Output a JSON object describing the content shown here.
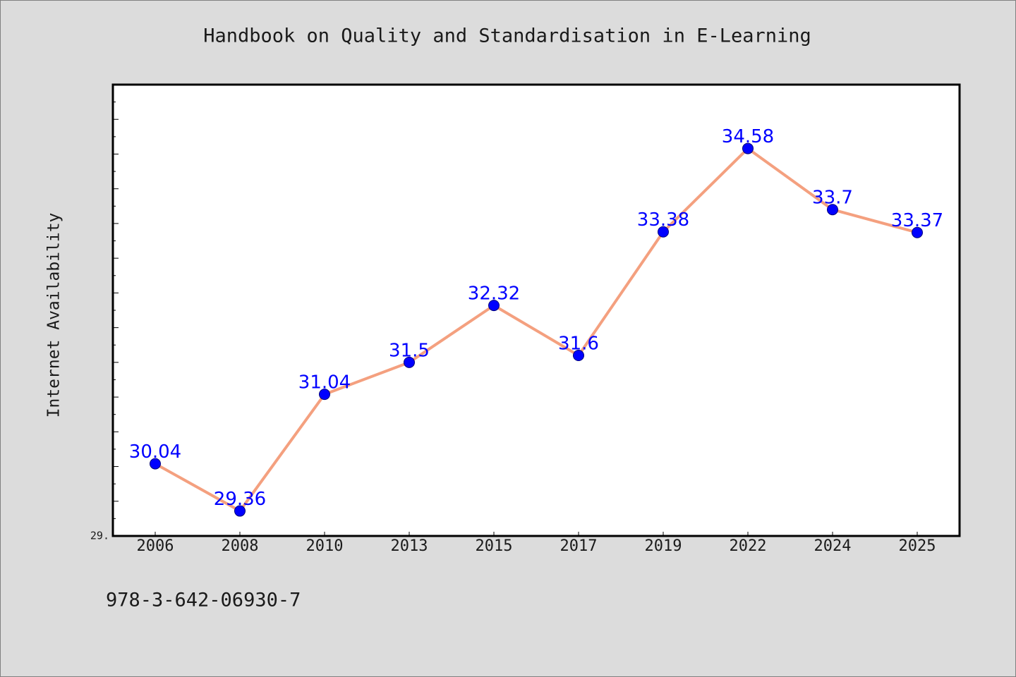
{
  "chart_data": {
    "type": "line",
    "title": "Handbook on Quality and Standardisation in E-Learning",
    "ylabel": "Internet Availability",
    "categories": [
      "2006",
      "2008",
      "2010",
      "2013",
      "2015",
      "2017",
      "2019",
      "2022",
      "2024",
      "2025"
    ],
    "series": [
      {
        "values": [
          30.04,
          29.36,
          31.04,
          31.5,
          32.32,
          31.6,
          33.38,
          34.58,
          33.7,
          33.37
        ],
        "data_labels": [
          "30.04",
          "29.36",
          "31.04",
          "31.5",
          "32.32",
          "31.6",
          "33.38",
          "34.58",
          "33.7",
          "33.37"
        ],
        "line_color": "#F4A07F",
        "marker": "filled-circle",
        "marker_color": "#0000FF",
        "marker_edge_color": "#00007A",
        "label_color": "#0000FF"
      }
    ],
    "ylim": [
      29,
      35.5
    ],
    "y_tick_labels": [
      {
        "value": 29,
        "label": "29."
      }
    ],
    "grid": false
  },
  "footer": {
    "text": "978-3-642-06930-7"
  },
  "colors": {
    "background": "#DCDCDC",
    "figure_border": "#808080",
    "plot_background": "#FFFFFF",
    "axis": "#000000",
    "text": "#1A1A1A"
  }
}
